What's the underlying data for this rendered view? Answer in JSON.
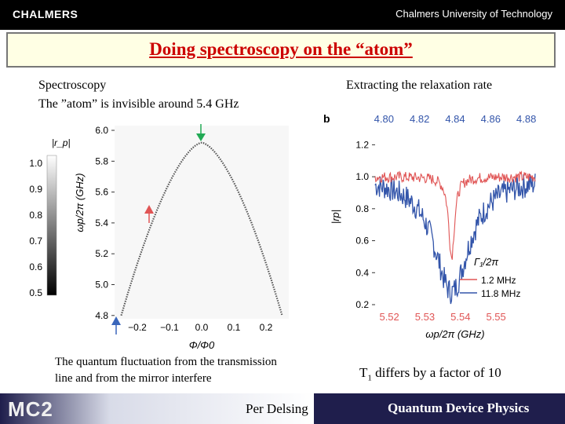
{
  "header": {
    "logo": "CHALMERS",
    "institution": "Chalmers University of Technology"
  },
  "slide": {
    "title": "Doing spectroscopy on the “atom”",
    "left_heading_line1": "Spectroscopy",
    "left_heading_line2": "The ”atom” is invisible around 5.4 GHz",
    "right_heading": "Extracting the relaxation rate",
    "left_caption_line1": "The quantum fluctuation from the transmission",
    "left_caption_line2": "line and from the mirror interfere",
    "right_caption_prefix": "T",
    "right_caption_sub": "1",
    "right_caption_suffix": " differs by a factor of 10"
  },
  "footer": {
    "logo": "MC2",
    "presenter": "Per Delsing",
    "group": "Quantum Device Physics"
  },
  "chart_data": [
    {
      "type": "heatmap",
      "panel_label": "",
      "colorbar_label": "|r_p|",
      "colorbar_ticks": [
        "1.0",
        "0.9",
        "0.8",
        "0.7",
        "0.6",
        "0.5"
      ],
      "ylabel": "ωp/2π (GHz)",
      "y_ticks": [
        "6.0",
        "5.8",
        "5.6",
        "5.4",
        "5.2",
        "5.0",
        "4.8"
      ],
      "xlabel": "Φ/Φ0",
      "x_ticks": [
        "−0.2",
        "−0.1",
        "0.0",
        "0.1",
        "0.2"
      ],
      "arc": {
        "peak_flux": 0.0,
        "peak_freq_ghz": 5.92,
        "edge_flux": 0.25,
        "edge_freq_ghz": 4.8
      },
      "markers": [
        {
          "name": "green",
          "color": "#22aa55"
        },
        {
          "name": "red",
          "color": "#e05555"
        },
        {
          "name": "blue",
          "color": "#3a66bb"
        }
      ]
    },
    {
      "type": "line",
      "panel_label": "b",
      "top_axis_ticks": [
        "4.80",
        "4.82",
        "4.84",
        "4.86",
        "4.88"
      ],
      "bottom_axis_ticks": [
        "5.52",
        "5.53",
        "5.54",
        "5.55"
      ],
      "xlabel": "ωp/2π (GHz)",
      "ylabel": "|rp|",
      "y_ticks": [
        "1.2",
        "1.0",
        "0.8",
        "0.6",
        "0.4",
        "0.2"
      ],
      "ylim": [
        0.2,
        1.3
      ],
      "legend_title": "Γ₁/2π",
      "series": [
        {
          "name": "1.2 MHz",
          "color": "#e05555",
          "dip_center": 4.838,
          "dip_min": 0.5,
          "dip_width": 0.002
        },
        {
          "name": "11.8 MHz",
          "color": "#3355aa",
          "dip_center": 4.838,
          "dip_min": 0.28,
          "dip_width": 0.012
        }
      ]
    }
  ]
}
